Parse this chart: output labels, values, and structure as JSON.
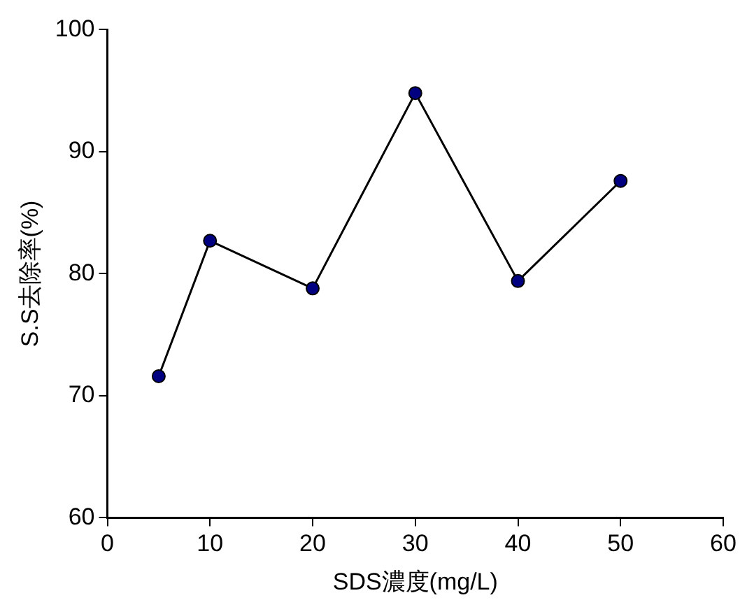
{
  "chart_data": {
    "type": "line",
    "xlabel": "SDS濃度(mg/L)",
    "ylabel": "S.S去除率(%)",
    "x": [
      5,
      10,
      20,
      30,
      40,
      50
    ],
    "series": [
      {
        "color": "#000080",
        "values": [
          71.6,
          82.7,
          78.8,
          94.8,
          79.4,
          87.6
        ]
      }
    ],
    "xlim": [
      0,
      60
    ],
    "xticks": [
      0,
      10,
      20,
      30,
      40,
      50,
      60
    ],
    "ylim": [
      60,
      100
    ],
    "yticks": [
      60,
      70,
      80,
      90,
      100
    ],
    "grid": false,
    "legend": false,
    "marker": "circle",
    "line_style": "solid"
  }
}
